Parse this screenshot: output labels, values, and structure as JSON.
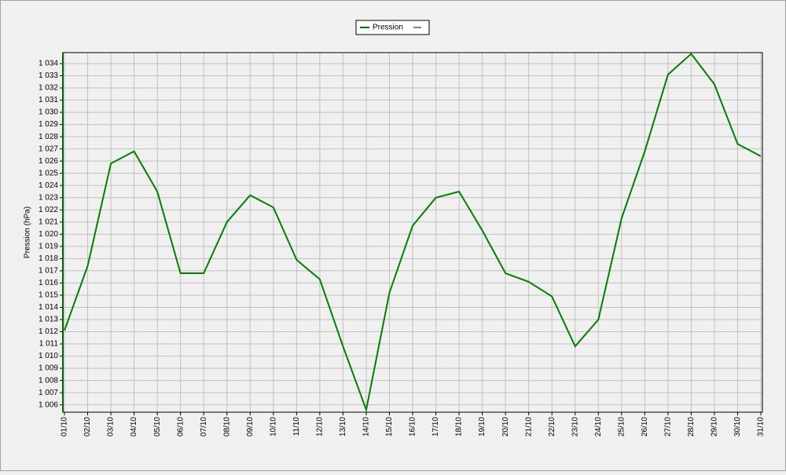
{
  "chart_data": {
    "type": "line",
    "y_label": "Pression (hPa)",
    "categories": [
      "01/10",
      "02/10",
      "03/10",
      "04/10",
      "05/10",
      "06/10",
      "07/10",
      "08/10",
      "09/10",
      "10/10",
      "11/10",
      "12/10",
      "13/10",
      "14/10",
      "15/10",
      "16/10",
      "17/10",
      "18/10",
      "19/10",
      "20/10",
      "21/10",
      "22/10",
      "23/10",
      "24/10",
      "25/10",
      "26/10",
      "27/10",
      "28/10",
      "29/10",
      "30/10",
      "31/10"
    ],
    "series": [
      {
        "name": "Pression",
        "color": "#008000",
        "values": [
          1012.1,
          1017.4,
          1025.8,
          1026.8,
          1023.5,
          1016.8,
          1016.8,
          1021.0,
          1023.2,
          1022.2,
          1017.9,
          1016.3,
          1010.8,
          1005.6,
          1015.2,
          1020.7,
          1023.0,
          1023.5,
          1020.3,
          1016.8,
          1016.1,
          1014.9,
          1010.8,
          1013.0,
          1021.3,
          1026.8,
          1033.1,
          1034.8,
          1032.3,
          1027.4,
          1026.4
        ]
      }
    ],
    "ylim": [
      1005.4,
      1034.9
    ],
    "yticks": [
      {
        "value": 1006,
        "label": "1 006"
      },
      {
        "value": 1007,
        "label": "1 007"
      },
      {
        "value": 1008,
        "label": "1 008"
      },
      {
        "value": 1009,
        "label": "1 009"
      },
      {
        "value": 1010,
        "label": "1 010"
      },
      {
        "value": 1011,
        "label": "1 011"
      },
      {
        "value": 1012,
        "label": "1 012"
      },
      {
        "value": 1013,
        "label": "1 013"
      },
      {
        "value": 1014,
        "label": "1 014"
      },
      {
        "value": 1015,
        "label": "1 015"
      },
      {
        "value": 1016,
        "label": "1 016"
      },
      {
        "value": 1017,
        "label": "1 017"
      },
      {
        "value": 1018,
        "label": "1 018"
      },
      {
        "value": 1019,
        "label": "1 019"
      },
      {
        "value": 1020,
        "label": "1 020"
      },
      {
        "value": 1021,
        "label": "1 021"
      },
      {
        "value": 1022,
        "label": "1 022"
      },
      {
        "value": 1023,
        "label": "1 023"
      },
      {
        "value": 1024,
        "label": "1 024"
      },
      {
        "value": 1025,
        "label": "1 025"
      },
      {
        "value": 1026,
        "label": "1 026"
      },
      {
        "value": 1027,
        "label": "1 027"
      },
      {
        "value": 1028,
        "label": "1 028"
      },
      {
        "value": 1029,
        "label": "1 029"
      },
      {
        "value": 1030,
        "label": "1 030"
      },
      {
        "value": 1031,
        "label": "1 031"
      },
      {
        "value": 1032,
        "label": "1 032"
      },
      {
        "value": 1033,
        "label": "1 033"
      },
      {
        "value": 1034,
        "label": "1 034"
      }
    ],
    "grid": true
  }
}
